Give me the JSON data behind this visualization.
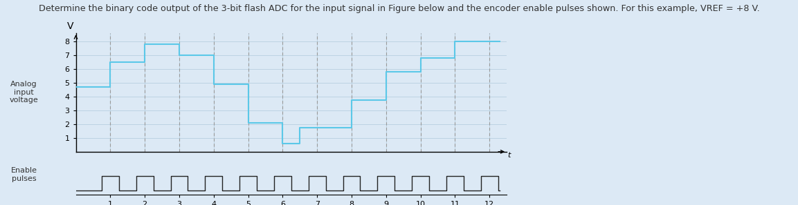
{
  "title": "Determine the binary code output of the 3-bit flash ADC for the input signal in Figure below and the encoder enable pulses shown. For this example, VREF = +8 V.",
  "analog_signal": [
    [
      0,
      4.7
    ],
    [
      1,
      4.7
    ],
    [
      1,
      6.5
    ],
    [
      2,
      6.5
    ],
    [
      2,
      7.8
    ],
    [
      3,
      7.8
    ],
    [
      3,
      7.0
    ],
    [
      4,
      7.0
    ],
    [
      4,
      4.9
    ],
    [
      5,
      4.9
    ],
    [
      5,
      2.1
    ],
    [
      6,
      2.1
    ],
    [
      6,
      0.6
    ],
    [
      6.5,
      0.6
    ],
    [
      6.5,
      1.75
    ],
    [
      8,
      1.75
    ],
    [
      8,
      3.75
    ],
    [
      9,
      3.75
    ],
    [
      9,
      5.8
    ],
    [
      10,
      5.8
    ],
    [
      10,
      6.8
    ],
    [
      11,
      6.8
    ],
    [
      11,
      8.0
    ],
    [
      12.3,
      8.0
    ]
  ],
  "enable_pulses": [
    [
      0,
      0
    ],
    [
      0.75,
      0
    ],
    [
      0.75,
      1
    ],
    [
      1.25,
      1
    ],
    [
      1.25,
      0
    ],
    [
      1.75,
      0
    ],
    [
      1.75,
      1
    ],
    [
      2.25,
      1
    ],
    [
      2.25,
      0
    ],
    [
      2.75,
      0
    ],
    [
      2.75,
      1
    ],
    [
      3.25,
      1
    ],
    [
      3.25,
      0
    ],
    [
      3.75,
      0
    ],
    [
      3.75,
      1
    ],
    [
      4.25,
      1
    ],
    [
      4.25,
      0
    ],
    [
      4.75,
      0
    ],
    [
      4.75,
      1
    ],
    [
      5.25,
      1
    ],
    [
      5.25,
      0
    ],
    [
      5.75,
      0
    ],
    [
      5.75,
      1
    ],
    [
      6.25,
      1
    ],
    [
      6.25,
      0
    ],
    [
      6.75,
      0
    ],
    [
      6.75,
      1
    ],
    [
      7.25,
      1
    ],
    [
      7.25,
      0
    ],
    [
      7.75,
      0
    ],
    [
      7.75,
      1
    ],
    [
      8.25,
      1
    ],
    [
      8.25,
      0
    ],
    [
      8.75,
      0
    ],
    [
      8.75,
      1
    ],
    [
      9.25,
      1
    ],
    [
      9.25,
      0
    ],
    [
      9.75,
      0
    ],
    [
      9.75,
      1
    ],
    [
      10.25,
      1
    ],
    [
      10.25,
      0
    ],
    [
      10.75,
      0
    ],
    [
      10.75,
      1
    ],
    [
      11.25,
      1
    ],
    [
      11.25,
      0
    ],
    [
      11.75,
      0
    ],
    [
      11.75,
      1
    ],
    [
      12.25,
      1
    ],
    [
      12.25,
      0
    ],
    [
      12.3,
      0
    ]
  ],
  "analog_color": "#5bc8e8",
  "enable_color": "#222222",
  "grid_color": "#b8cfe0",
  "dashed_color": "#999999",
  "background_color": "#dce9f5",
  "plot_bg_color": "#dce9f5",
  "text_color": "#333333",
  "ylabel_lines": [
    "Analog",
    "input",
    "voltage"
  ],
  "y_ticks": [
    1,
    2,
    3,
    4,
    5,
    6,
    7,
    8
  ],
  "x_ticks": [
    1,
    2,
    3,
    4,
    5,
    6,
    7,
    8,
    9,
    10,
    11,
    12
  ],
  "dashed_x": [
    1,
    2,
    3,
    4,
    5,
    6,
    7,
    8,
    9,
    10,
    11,
    12
  ],
  "ylim": [
    0,
    8.6
  ],
  "xlim": [
    0,
    12.5
  ],
  "enable_ylim": [
    -0.3,
    1.8
  ],
  "figsize": [
    11.53,
    2.97
  ],
  "dpi": 100
}
